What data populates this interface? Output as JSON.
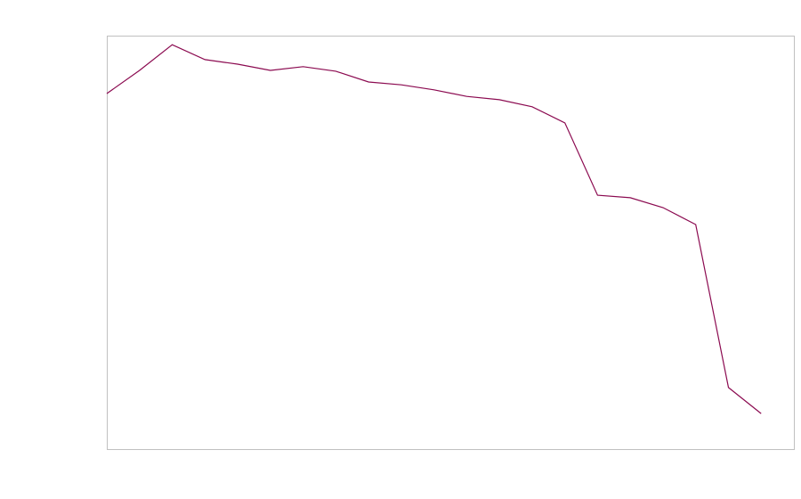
{
  "chart_data": {
    "type": "line",
    "title": "",
    "xlabel": "",
    "ylabel": "",
    "grid": false,
    "legend": "none",
    "xlim": [
      0,
      21
    ],
    "ylim": [
      0,
      100
    ],
    "x": [
      0,
      1,
      2,
      3,
      4,
      5,
      6,
      7,
      8,
      9,
      10,
      11,
      12,
      13,
      14,
      15,
      16,
      17,
      18,
      19,
      20
    ],
    "series": [
      {
        "color": "#8b0a50",
        "values": [
          86.0,
          91.6,
          97.8,
          94.2,
          93.1,
          91.6,
          92.5,
          91.4,
          88.8,
          88.1,
          86.9,
          85.3,
          84.5,
          82.8,
          78.9,
          61.4,
          60.8,
          58.4,
          54.3,
          14.9,
          8.6
        ]
      }
    ],
    "frame_color": "#c0c0c0"
  }
}
